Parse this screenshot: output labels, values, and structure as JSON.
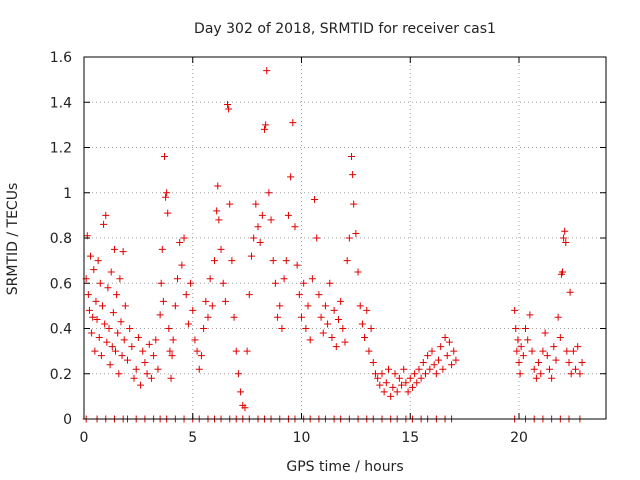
{
  "chart_data": {
    "type": "scatter",
    "title": "Day 302 of 2018, SRMTID for receiver cas1",
    "xlabel": "GPS time / hours",
    "ylabel": "SRMTID / TECUs",
    "xlim": [
      0,
      24
    ],
    "ylim": [
      0,
      1.6
    ],
    "x_ticks": [
      0,
      5,
      10,
      15,
      20
    ],
    "x_tick_labels": [
      "0",
      "5",
      "10",
      "15",
      "20"
    ],
    "y_ticks": [
      0,
      0.2,
      0.4,
      0.6,
      0.8,
      1.0,
      1.2,
      1.4,
      1.6
    ],
    "y_tick_labels": [
      "0",
      "0.2",
      "0.4",
      "0.6",
      "0.8",
      "1",
      "1.2",
      "1.4",
      "1.6"
    ],
    "grid": true,
    "marker": "plus",
    "series": [
      {
        "name": "SRMTID",
        "color": "#e00000",
        "points": [
          [
            0.1,
            0.62
          ],
          [
            0.15,
            0.81
          ],
          [
            0.2,
            0.55
          ],
          [
            0.25,
            0.48
          ],
          [
            0.3,
            0.72
          ],
          [
            0.35,
            0.38
          ],
          [
            0.4,
            0.45
          ],
          [
            0.45,
            0.66
          ],
          [
            0.5,
            0.3
          ],
          [
            0.55,
            0.52
          ],
          [
            0.6,
            0.44
          ],
          [
            0.65,
            0.7
          ],
          [
            0.7,
            0.36
          ],
          [
            0.75,
            0.6
          ],
          [
            0.8,
            0.28
          ],
          [
            0.85,
            0.5
          ],
          [
            0.9,
            0.86
          ],
          [
            0.95,
            0.42
          ],
          [
            1.0,
            0.9
          ],
          [
            1.05,
            0.34
          ],
          [
            1.1,
            0.58
          ],
          [
            1.15,
            0.4
          ],
          [
            1.2,
            0.24
          ],
          [
            1.25,
            0.65
          ],
          [
            1.3,
            0.32
          ],
          [
            1.35,
            0.47
          ],
          [
            1.4,
            0.75
          ],
          [
            1.45,
            0.3
          ],
          [
            1.5,
            0.55
          ],
          [
            1.55,
            0.38
          ],
          [
            1.6,
            0.2
          ],
          [
            1.65,
            0.62
          ],
          [
            1.7,
            0.43
          ],
          [
            1.75,
            0.28
          ],
          [
            1.8,
            0.74
          ],
          [
            1.85,
            0.35
          ],
          [
            1.9,
            0.5
          ],
          [
            2.0,
            0.26
          ],
          [
            2.1,
            0.4
          ],
          [
            2.2,
            0.32
          ],
          [
            2.3,
            0.18
          ],
          [
            2.4,
            0.22
          ],
          [
            2.5,
            0.36
          ],
          [
            2.6,
            0.15
          ],
          [
            2.7,
            0.3
          ],
          [
            2.8,
            0.25
          ],
          [
            2.9,
            0.2
          ],
          [
            3.0,
            0.33
          ],
          [
            3.1,
            0.18
          ],
          [
            3.2,
            0.28
          ],
          [
            3.3,
            0.35
          ],
          [
            3.4,
            0.22
          ],
          [
            3.5,
            0.46
          ],
          [
            3.55,
            0.6
          ],
          [
            3.6,
            0.75
          ],
          [
            3.65,
            0.52
          ],
          [
            3.7,
            1.16
          ],
          [
            3.75,
            0.98
          ],
          [
            3.8,
            1.0
          ],
          [
            3.85,
            0.91
          ],
          [
            3.9,
            0.4
          ],
          [
            3.95,
            0.3
          ],
          [
            4.0,
            0.18
          ],
          [
            4.05,
            0.28
          ],
          [
            4.1,
            0.35
          ],
          [
            4.2,
            0.5
          ],
          [
            4.3,
            0.62
          ],
          [
            4.4,
            0.78
          ],
          [
            4.5,
            0.68
          ],
          [
            4.6,
            0.8
          ],
          [
            4.7,
            0.55
          ],
          [
            4.8,
            0.42
          ],
          [
            4.9,
            0.6
          ],
          [
            5.0,
            0.48
          ],
          [
            5.1,
            0.35
          ],
          [
            5.2,
            0.3
          ],
          [
            5.3,
            0.22
          ],
          [
            5.4,
            0.28
          ],
          [
            5.5,
            0.4
          ],
          [
            5.6,
            0.52
          ],
          [
            5.7,
            0.45
          ],
          [
            5.8,
            0.62
          ],
          [
            5.9,
            0.5
          ],
          [
            6.0,
            0.7
          ],
          [
            6.1,
            0.92
          ],
          [
            6.15,
            1.03
          ],
          [
            6.2,
            0.88
          ],
          [
            6.3,
            0.75
          ],
          [
            6.4,
            0.6
          ],
          [
            6.5,
            0.52
          ],
          [
            6.6,
            1.39
          ],
          [
            6.65,
            1.37
          ],
          [
            6.7,
            0.95
          ],
          [
            6.8,
            0.7
          ],
          [
            6.9,
            0.45
          ],
          [
            7.0,
            0.3
          ],
          [
            7.1,
            0.2
          ],
          [
            7.2,
            0.12
          ],
          [
            7.3,
            0.06
          ],
          [
            7.4,
            0.05
          ],
          [
            7.5,
            0.3
          ],
          [
            7.6,
            0.55
          ],
          [
            7.7,
            0.72
          ],
          [
            7.8,
            0.8
          ],
          [
            7.9,
            0.95
          ],
          [
            8.0,
            0.85
          ],
          [
            8.1,
            0.78
          ],
          [
            8.2,
            0.9
          ],
          [
            8.3,
            1.28
          ],
          [
            8.35,
            1.3
          ],
          [
            8.4,
            1.54
          ],
          [
            8.5,
            1.0
          ],
          [
            8.6,
            0.88
          ],
          [
            8.7,
            0.7
          ],
          [
            8.8,
            0.6
          ],
          [
            8.9,
            0.45
          ],
          [
            9.0,
            0.5
          ],
          [
            9.1,
            0.4
          ],
          [
            9.2,
            0.62
          ],
          [
            9.3,
            0.7
          ],
          [
            9.4,
            0.9
          ],
          [
            9.5,
            1.07
          ],
          [
            9.6,
            1.31
          ],
          [
            9.7,
            0.85
          ],
          [
            9.8,
            0.68
          ],
          [
            9.9,
            0.55
          ],
          [
            10.0,
            0.45
          ],
          [
            10.1,
            0.6
          ],
          [
            10.2,
            0.4
          ],
          [
            10.3,
            0.5
          ],
          [
            10.4,
            0.35
          ],
          [
            10.5,
            0.62
          ],
          [
            10.6,
            0.97
          ],
          [
            10.7,
            0.8
          ],
          [
            10.8,
            0.55
          ],
          [
            10.9,
            0.45
          ],
          [
            11.0,
            0.38
          ],
          [
            11.1,
            0.5
          ],
          [
            11.2,
            0.42
          ],
          [
            11.3,
            0.6
          ],
          [
            11.4,
            0.36
          ],
          [
            11.5,
            0.48
          ],
          [
            11.6,
            0.32
          ],
          [
            11.7,
            0.44
          ],
          [
            11.8,
            0.52
          ],
          [
            11.9,
            0.4
          ],
          [
            12.0,
            0.34
          ],
          [
            12.1,
            0.7
          ],
          [
            12.2,
            0.8
          ],
          [
            12.3,
            1.16
          ],
          [
            12.35,
            1.08
          ],
          [
            12.4,
            0.95
          ],
          [
            12.5,
            0.82
          ],
          [
            12.6,
            0.65
          ],
          [
            12.7,
            0.5
          ],
          [
            12.8,
            0.42
          ],
          [
            12.9,
            0.36
          ],
          [
            13.0,
            0.48
          ],
          [
            13.1,
            0.3
          ],
          [
            13.2,
            0.4
          ],
          [
            13.3,
            0.25
          ],
          [
            13.4,
            0.2
          ],
          [
            13.5,
            0.18
          ],
          [
            13.6,
            0.15
          ],
          [
            13.7,
            0.2
          ],
          [
            13.8,
            0.12
          ],
          [
            13.9,
            0.16
          ],
          [
            14.0,
            0.22
          ],
          [
            14.1,
            0.1
          ],
          [
            14.2,
            0.14
          ],
          [
            14.3,
            0.2
          ],
          [
            14.4,
            0.12
          ],
          [
            14.5,
            0.18
          ],
          [
            14.6,
            0.15
          ],
          [
            14.7,
            0.22
          ],
          [
            14.8,
            0.16
          ],
          [
            14.9,
            0.12
          ],
          [
            15.0,
            0.18
          ],
          [
            15.1,
            0.14
          ],
          [
            15.2,
            0.2
          ],
          [
            15.3,
            0.16
          ],
          [
            15.4,
            0.22
          ],
          [
            15.5,
            0.18
          ],
          [
            15.6,
            0.25
          ],
          [
            15.7,
            0.2
          ],
          [
            15.8,
            0.28
          ],
          [
            15.9,
            0.22
          ],
          [
            16.0,
            0.3
          ],
          [
            16.1,
            0.24
          ],
          [
            16.2,
            0.2
          ],
          [
            16.3,
            0.26
          ],
          [
            16.4,
            0.32
          ],
          [
            16.5,
            0.22
          ],
          [
            16.6,
            0.36
          ],
          [
            16.7,
            0.28
          ],
          [
            16.8,
            0.34
          ],
          [
            16.9,
            0.24
          ],
          [
            17.0,
            0.3
          ],
          [
            17.1,
            0.26
          ],
          [
            19.8,
            0.48
          ],
          [
            19.85,
            0.4
          ],
          [
            19.9,
            0.3
          ],
          [
            19.95,
            0.35
          ],
          [
            20.0,
            0.25
          ],
          [
            20.05,
            0.2
          ],
          [
            20.1,
            0.32
          ],
          [
            20.2,
            0.28
          ],
          [
            20.3,
            0.4
          ],
          [
            20.4,
            0.35
          ],
          [
            20.5,
            0.46
          ],
          [
            20.6,
            0.3
          ],
          [
            20.7,
            0.22
          ],
          [
            20.8,
            0.18
          ],
          [
            20.9,
            0.25
          ],
          [
            21.0,
            0.2
          ],
          [
            21.1,
            0.3
          ],
          [
            21.2,
            0.38
          ],
          [
            21.3,
            0.28
          ],
          [
            21.4,
            0.22
          ],
          [
            21.5,
            0.18
          ],
          [
            21.6,
            0.32
          ],
          [
            21.7,
            0.26
          ],
          [
            21.8,
            0.45
          ],
          [
            21.9,
            0.36
          ],
          [
            21.95,
            0.64
          ],
          [
            22.0,
            0.65
          ],
          [
            22.05,
            0.8
          ],
          [
            22.1,
            0.83
          ],
          [
            22.15,
            0.78
          ],
          [
            22.2,
            0.3
          ],
          [
            22.3,
            0.25
          ],
          [
            22.35,
            0.56
          ],
          [
            22.4,
            0.2
          ],
          [
            22.5,
            0.3
          ],
          [
            22.6,
            0.22
          ],
          [
            22.7,
            0.32
          ],
          [
            22.8,
            0.2
          ],
          [
            22.9,
            0.25
          ]
        ],
        "zero_values_x": [
          0.1,
          0.6,
          1.0,
          1.4,
          1.8,
          2.0,
          2.4,
          2.8,
          3.2,
          3.5,
          3.8,
          4.2,
          4.6,
          5.0,
          5.3,
          5.7,
          6.0,
          6.3,
          6.7,
          7.0,
          7.3,
          7.6,
          8.0,
          8.3,
          8.6,
          9.0,
          9.4,
          9.7,
          10.1,
          10.4,
          10.8,
          11.1,
          11.5,
          11.8,
          12.2,
          12.6,
          13.0,
          13.3,
          13.7,
          14.1,
          14.4,
          14.8,
          15.1,
          15.5,
          15.8,
          16.2,
          16.6,
          16.9,
          19.8,
          20.3,
          20.7,
          21.1,
          21.5,
          21.9,
          22.3,
          22.8
        ]
      }
    ]
  }
}
